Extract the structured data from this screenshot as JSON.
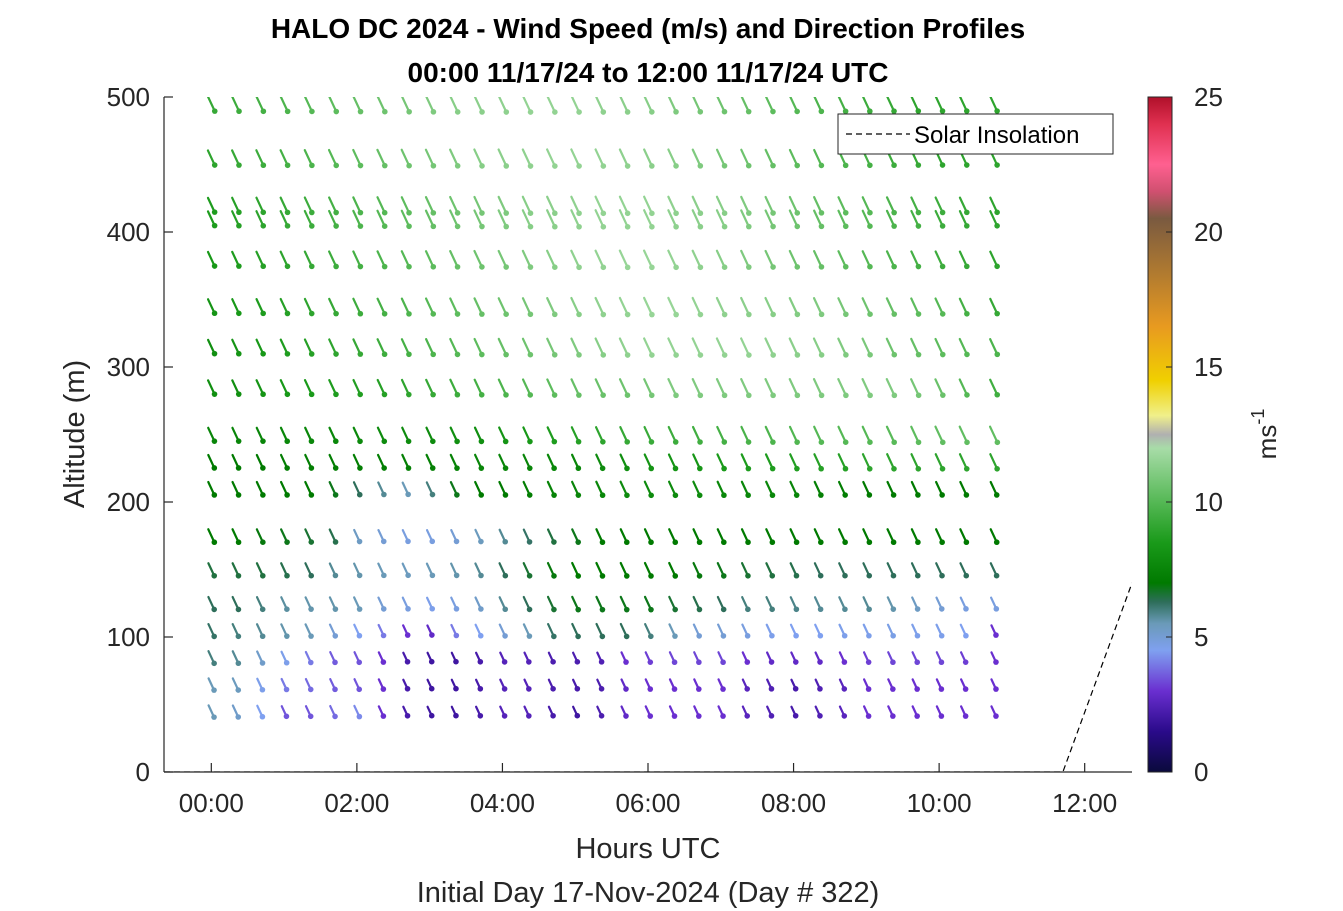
{
  "chart_data": {
    "type": "quiver",
    "title": "HALO DC 2024 - Wind Speed (m/s) and Direction Profiles",
    "subtitle": "00:00 11/17/24 to 12:00 11/17/24  UTC",
    "xlabel": "Hours UTC",
    "xlabel2": "Initial Day 17-Nov-2024 (Day # 322)",
    "ylabel": "Altitude (m)",
    "colorbar_label": "ms",
    "colorbar_label_exp": "-1",
    "xlim": [
      -0.65,
      12.65
    ],
    "ylim": [
      0,
      500
    ],
    "x_ticks": [
      0,
      2,
      4,
      6,
      8,
      10,
      12
    ],
    "x_tick_labels": [
      "00:00",
      "02:00",
      "04:00",
      "06:00",
      "08:00",
      "10:00",
      "12:00"
    ],
    "y_ticks": [
      0,
      100,
      200,
      300,
      400,
      500
    ],
    "y_tick_labels": [
      "0",
      "100",
      "200",
      "300",
      "400",
      "500"
    ],
    "clim": [
      0,
      25
    ],
    "colorbar_ticks": [
      0,
      5,
      10,
      15,
      20,
      25
    ],
    "colorbar_tick_labels": [
      "0",
      "5",
      "10",
      "15",
      "20",
      "25"
    ],
    "colormap": [
      [
        0,
        "#0a0a3c"
      ],
      [
        1.5,
        "#2a0a8a"
      ],
      [
        3,
        "#6a2fd0"
      ],
      [
        4.5,
        "#7fa0f0"
      ],
      [
        5.5,
        "#6a9ab8"
      ],
      [
        6.3,
        "#2e6e5a"
      ],
      [
        7,
        "#007a00"
      ],
      [
        8.5,
        "#1a9a1a"
      ],
      [
        10,
        "#55b855"
      ],
      [
        12,
        "#a8dca8"
      ],
      [
        12.5,
        "#b0b0b0"
      ],
      [
        13.2,
        "#f0f08a"
      ],
      [
        14.5,
        "#f0d000"
      ],
      [
        16.5,
        "#e89a20"
      ],
      [
        18.5,
        "#b07a30"
      ],
      [
        20.5,
        "#7a5a40"
      ],
      [
        21.5,
        "#d05070"
      ],
      [
        22.5,
        "#ff6090"
      ],
      [
        24,
        "#e03050"
      ],
      [
        25,
        "#b0102a"
      ]
    ],
    "times_hours": [
      0,
      0.333,
      0.667,
      1.0,
      1.333,
      1.667,
      2.0,
      2.333,
      2.667,
      3.0,
      3.333,
      3.667,
      4.0,
      4.333,
      4.667,
      5.0,
      5.333,
      5.667,
      6.0,
      6.333,
      6.667,
      7.0,
      7.333,
      7.667,
      8.0,
      8.333,
      8.667,
      9.0,
      9.333,
      9.667,
      10.0,
      10.333,
      10.75
    ],
    "altitudes_m": [
      45,
      65,
      85,
      105,
      125,
      150,
      175,
      210,
      230,
      250,
      285,
      315,
      345,
      380,
      410,
      420,
      455,
      495
    ],
    "wind_direction_deg": 335,
    "speed_profile_ms": [
      [
        5.5,
        5.2,
        4.5,
        3.5,
        3.5,
        3.8,
        4.2,
        3.0,
        2.2,
        2.0,
        2.0,
        2.2,
        2.5,
        2.5,
        2.2,
        2.0,
        2.3,
        2.8,
        3.0,
        3.0,
        3.0,
        3.0,
        2.6,
        2.4,
        2.2,
        2.4,
        2.6,
        3.0,
        3.0,
        3.0,
        3.0,
        3.0,
        3.0
      ],
      [
        5.5,
        5.4,
        4.6,
        4.0,
        3.8,
        3.6,
        3.5,
        3.0,
        2.2,
        2.0,
        2.0,
        2.2,
        2.5,
        2.5,
        2.3,
        2.2,
        2.3,
        2.8,
        3.0,
        3.0,
        3.0,
        3.0,
        2.6,
        2.4,
        2.2,
        2.4,
        2.6,
        3.0,
        3.0,
        3.0,
        3.0,
        3.0,
        3.0
      ],
      [
        6.0,
        5.8,
        5.2,
        4.6,
        4.0,
        3.6,
        3.5,
        3.0,
        2.2,
        2.0,
        2.0,
        2.2,
        2.5,
        2.5,
        2.3,
        2.3,
        2.4,
        3.0,
        3.2,
        3.3,
        3.3,
        3.3,
        3.0,
        2.8,
        2.8,
        2.8,
        3.0,
        3.2,
        3.3,
        3.3,
        3.3,
        3.2,
        3.0
      ],
      [
        6.2,
        6.0,
        5.8,
        5.6,
        5.5,
        5.0,
        4.5,
        4.0,
        3.0,
        2.8,
        4.0,
        4.5,
        5.0,
        5.5,
        6.2,
        6.3,
        6.3,
        6.3,
        6.0,
        5.5,
        5.0,
        5.0,
        4.8,
        4.6,
        4.5,
        4.5,
        4.6,
        4.6,
        4.7,
        4.6,
        4.6,
        4.5,
        3.0
      ],
      [
        6.3,
        6.3,
        6.0,
        5.7,
        5.6,
        5.6,
        5.5,
        5.0,
        4.8,
        4.6,
        4.8,
        5.2,
        5.8,
        6.3,
        6.6,
        6.8,
        6.8,
        6.8,
        6.8,
        6.6,
        6.4,
        6.3,
        6.0,
        6.0,
        5.9,
        5.8,
        5.8,
        5.8,
        5.6,
        5.3,
        5.0,
        4.8,
        4.8
      ],
      [
        6.5,
        6.5,
        6.5,
        6.4,
        6.3,
        5.8,
        5.6,
        5.5,
        5.4,
        5.5,
        5.6,
        5.8,
        6.3,
        6.6,
        6.9,
        7.0,
        7.0,
        7.0,
        7.0,
        7.0,
        6.9,
        6.8,
        6.6,
        6.5,
        6.4,
        6.3,
        6.3,
        6.3,
        6.3,
        6.3,
        6.3,
        6.3,
        6.3
      ],
      [
        7.0,
        7.0,
        6.9,
        6.8,
        6.6,
        6.4,
        5.3,
        5.0,
        4.8,
        4.8,
        5.0,
        5.4,
        5.8,
        6.2,
        6.5,
        6.8,
        7.0,
        7.0,
        7.0,
        7.0,
        7.0,
        7.0,
        7.0,
        7.0,
        7.0,
        7.0,
        7.0,
        7.0,
        7.0,
        7.0,
        7.0,
        7.0,
        7.0
      ],
      [
        7.0,
        7.0,
        7.0,
        7.0,
        7.0,
        6.8,
        6.3,
        5.8,
        5.5,
        6.0,
        6.8,
        7.0,
        7.0,
        7.2,
        7.4,
        7.5,
        7.6,
        7.8,
        7.8,
        7.8,
        7.8,
        7.6,
        7.6,
        7.6,
        7.5,
        7.3,
        7.2,
        7.0,
        7.0,
        7.0,
        7.0,
        7.0,
        7.0
      ],
      [
        7.0,
        7.0,
        7.0,
        7.2,
        7.2,
        7.2,
        7.2,
        7.2,
        7.3,
        7.3,
        7.4,
        7.5,
        7.5,
        7.5,
        7.6,
        7.6,
        7.8,
        8.0,
        8.2,
        8.2,
        8.3,
        8.5,
        8.6,
        8.6,
        8.7,
        8.8,
        8.8,
        9.0,
        9.0,
        9.0,
        9.0,
        9.0,
        9.0
      ],
      [
        7.5,
        7.5,
        7.5,
        7.6,
        7.6,
        7.6,
        7.7,
        7.8,
        7.8,
        7.8,
        8.0,
        8.0,
        8.2,
        8.4,
        8.6,
        8.8,
        9.0,
        9.2,
        9.3,
        9.4,
        9.5,
        9.6,
        9.7,
        9.8,
        9.9,
        10.0,
        10.0,
        10.0,
        10.1,
        10.2,
        10.3,
        10.3,
        10.3
      ],
      [
        8.0,
        8.0,
        8.2,
        8.4,
        8.5,
        8.6,
        8.7,
        8.8,
        9.0,
        9.2,
        9.4,
        9.6,
        9.8,
        10.0,
        10.2,
        10.4,
        10.5,
        10.6,
        10.8,
        11.0,
        11.0,
        11.0,
        11.0,
        11.0,
        11.0,
        11.0,
        11.0,
        11.0,
        11.0,
        10.8,
        10.5,
        10.0,
        9.5
      ],
      [
        8.0,
        8.2,
        8.4,
        8.6,
        8.8,
        9.0,
        9.2,
        9.4,
        9.6,
        9.8,
        10.0,
        10.2,
        10.4,
        10.6,
        10.8,
        11.0,
        11.2,
        11.4,
        11.5,
        11.5,
        11.5,
        11.5,
        11.5,
        11.4,
        11.3,
        11.2,
        11.0,
        10.9,
        10.6,
        10.4,
        10.2,
        10.0,
        9.8
      ],
      [
        8.2,
        8.4,
        8.6,
        8.8,
        9.0,
        9.2,
        9.4,
        9.6,
        9.8,
        10.0,
        10.2,
        10.4,
        10.6,
        10.8,
        11.0,
        11.2,
        11.4,
        11.5,
        11.6,
        11.6,
        11.5,
        11.4,
        11.3,
        11.2,
        11.1,
        11.0,
        10.8,
        10.6,
        10.4,
        10.2,
        10.0,
        9.6,
        9.2
      ],
      [
        8.4,
        8.6,
        8.8,
        9.0,
        9.2,
        9.4,
        9.6,
        9.8,
        10.0,
        10.2,
        10.4,
        10.6,
        10.8,
        11.0,
        11.2,
        11.4,
        11.5,
        11.6,
        11.6,
        11.5,
        11.4,
        11.2,
        11.0,
        10.8,
        10.6,
        10.4,
        10.2,
        10.0,
        9.8,
        9.6,
        9.4,
        9.2,
        9.0
      ],
      [
        8.6,
        8.8,
        9.0,
        9.2,
        9.4,
        9.6,
        9.8,
        10.0,
        10.2,
        10.4,
        10.6,
        10.8,
        11.0,
        11.2,
        11.3,
        11.4,
        11.5,
        11.5,
        11.5,
        11.4,
        11.3,
        11.2,
        11.0,
        10.8,
        10.6,
        10.4,
        10.2,
        10.0,
        9.8,
        9.6,
        9.4,
        9.2,
        9.0
      ],
      [
        8.6,
        8.8,
        9.0,
        9.2,
        9.4,
        9.6,
        9.8,
        10.0,
        10.2,
        10.4,
        10.6,
        10.8,
        11.0,
        11.2,
        11.3,
        11.4,
        11.5,
        11.5,
        11.5,
        11.4,
        11.3,
        11.2,
        11.0,
        10.8,
        10.6,
        10.4,
        10.2,
        10.0,
        9.8,
        9.6,
        9.4,
        9.2,
        9.0
      ],
      [
        9.0,
        9.2,
        9.4,
        9.6,
        9.8,
        10.0,
        10.2,
        10.4,
        10.6,
        10.8,
        11.0,
        11.2,
        11.3,
        11.4,
        11.5,
        11.5,
        11.5,
        11.4,
        11.3,
        11.2,
        11.0,
        10.8,
        10.6,
        10.4,
        10.2,
        10.0,
        9.8,
        9.6,
        9.4,
        9.2,
        9.0,
        9.0,
        9.0
      ],
      [
        9.2,
        9.4,
        9.6,
        9.8,
        10.0,
        10.2,
        10.4,
        10.6,
        10.8,
        11.0,
        11.2,
        11.3,
        11.4,
        11.5,
        11.5,
        11.5,
        11.4,
        11.3,
        11.2,
        11.0,
        10.8,
        10.6,
        10.4,
        10.2,
        10.0,
        9.8,
        9.6,
        9.4,
        9.2,
        9.0,
        9.0,
        9.0,
        9.0
      ]
    ],
    "legend": {
      "entries": [
        {
          "label": "Solar Insolation",
          "style": "dashed"
        }
      ],
      "placement": "top-right"
    },
    "solar_insolation": {
      "x": [
        -0.65,
        11.7,
        12.65
      ],
      "y": [
        0,
        0,
        140
      ]
    }
  }
}
